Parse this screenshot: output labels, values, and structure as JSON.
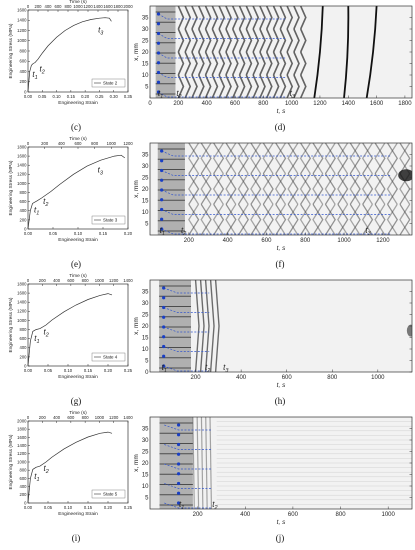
{
  "panels": [
    {
      "caption": "(c)",
      "chart_data": {
        "type": "line",
        "xlabel": "Engineering Strain",
        "ylabel": "Engineering Stress (MPa)",
        "toplabel": "Time (s)",
        "xlim": [
          0,
          0.35
        ],
        "ylim": [
          0,
          1600
        ],
        "toplim": [
          0,
          2000
        ],
        "xticks": [
          "0.00",
          "0.05",
          "0.10",
          "0.15",
          "0.20",
          "0.25",
          "0.30",
          "0.35"
        ],
        "yticks": [
          "0",
          "200",
          "400",
          "600",
          "800",
          "1000",
          "1200",
          "1400",
          "1600"
        ],
        "topticks": [
          "0",
          "200",
          "400",
          "600",
          "800",
          "1000",
          "1200",
          "1400",
          "1600",
          "1800",
          "2000"
        ],
        "legend": "State 2",
        "legend_position": "bottom-right",
        "series": [
          {
            "x": [
              0,
              0.006,
              0.012,
              0.018,
              0.025,
              0.035,
              0.05,
              0.07,
              0.1,
              0.13,
              0.16,
              0.19,
              0.22,
              0.25,
              0.27,
              0.285,
              0.292
            ],
            "y": [
              0,
              400,
              520,
              555,
              575,
              640,
              760,
              900,
              1070,
              1200,
              1300,
              1370,
              1415,
              1440,
              1450,
              1440,
              1380
            ]
          }
        ],
        "annotations": [
          {
            "label": "t1",
            "x": 0.01,
            "y": 430
          },
          {
            "label": "t2",
            "x": 0.035,
            "y": 540
          },
          {
            "label": "t3",
            "x": 0.24,
            "y": 1300
          }
        ]
      }
    },
    {
      "caption": "(d)",
      "chart_data": {
        "type": "heatmap",
        "xlabel": "t, s",
        "ylabel": "x, mm",
        "xlim": [
          0,
          1850
        ],
        "ylim": [
          0,
          40
        ],
        "xticks": [
          "0",
          "200",
          "400",
          "600",
          "800",
          "1000",
          "1200",
          "1400",
          "1600",
          "1800"
        ],
        "yticks": [
          "5",
          "10",
          "15",
          "20",
          "25",
          "30",
          "35"
        ],
        "markers": [
          "t1",
          "t2",
          "t3"
        ]
      }
    },
    {
      "caption": "(e)",
      "chart_data": {
        "type": "line",
        "xlabel": "Engineering Strain",
        "ylabel": "Engineering Stress (MPa)",
        "toplabel": "Time (s)",
        "xlim": [
          0,
          0.22
        ],
        "ylim": [
          0,
          1800
        ],
        "toplim": [
          0,
          1300
        ],
        "xticks": [
          "0.00",
          "0.05",
          "0.10",
          "0.15",
          "0.20"
        ],
        "yticks": [
          "0",
          "200",
          "400",
          "600",
          "800",
          "1000",
          "1200",
          "1400",
          "1600",
          "1800"
        ],
        "topticks": [
          "0",
          "200",
          "400",
          "600",
          "800",
          "1000",
          "1200"
        ],
        "legend": "State 3",
        "legend_position": "bottom-right",
        "series": [
          {
            "x": [
              0,
              0.005,
              0.01,
              0.02,
              0.03,
              0.05,
              0.07,
              0.1,
              0.13,
              0.16,
              0.19,
              0.205,
              0.213
            ],
            "y": [
              0,
              400,
              560,
              620,
              680,
              820,
              980,
              1200,
              1380,
              1510,
              1600,
              1620,
              1560
            ]
          }
        ],
        "annotations": [
          {
            "label": "t1",
            "x": 0.01,
            "y": 520
          },
          {
            "label": "t2",
            "x": 0.03,
            "y": 700
          },
          {
            "label": "t3",
            "x": 0.15,
            "y": 1390
          }
        ]
      }
    },
    {
      "caption": "(f)",
      "chart_data": {
        "type": "heatmap",
        "xlabel": "t, s",
        "ylabel": "x, mm",
        "xlim": [
          0,
          1350
        ],
        "ylim": [
          0,
          40
        ],
        "xticks": [
          "200",
          "400",
          "600",
          "800",
          "1000",
          "1200"
        ],
        "yticks": [
          "5",
          "10",
          "15",
          "20",
          "25",
          "30",
          "35"
        ],
        "markers": [
          "t1",
          "t2",
          "t3"
        ]
      }
    },
    {
      "caption": "(g)",
      "chart_data": {
        "type": "line",
        "xlabel": "Engineering Strain",
        "ylabel": "Engineering Stress (MPa)",
        "toplabel": "Time (s)",
        "xlim": [
          0,
          0.25
        ],
        "ylim": [
          0,
          1800
        ],
        "toplim": [
          0,
          1400
        ],
        "xticks": [
          "0.00",
          "0.05",
          "0.10",
          "0.15",
          "0.20",
          "0.25"
        ],
        "yticks": [
          "0",
          "200",
          "400",
          "600",
          "800",
          "1000",
          "1200",
          "1400",
          "1600",
          "1800"
        ],
        "topticks": [
          "0",
          "200",
          "400",
          "600",
          "800",
          "1000",
          "1200",
          "1400"
        ],
        "legend": "State 4",
        "legend_position": "bottom-right",
        "series": [
          {
            "x": [
              0,
              0.006,
              0.012,
              0.02,
              0.03,
              0.045,
              0.06,
              0.09,
              0.12,
              0.15,
              0.18,
              0.2,
              0.21
            ],
            "y": [
              0,
              550,
              760,
              800,
              820,
              900,
              1010,
              1190,
              1340,
              1460,
              1550,
              1590,
              1560
            ]
          }
        ],
        "annotations": [
          {
            "label": "t1",
            "x": 0.012,
            "y": 700
          },
          {
            "label": "t2",
            "x": 0.035,
            "y": 850
          }
        ]
      }
    },
    {
      "caption": "(h)",
      "chart_data": {
        "type": "heatmap",
        "xlabel": "t, s",
        "ylabel": "x, mm",
        "xlim": [
          0,
          1150
        ],
        "ylim": [
          0,
          40
        ],
        "xticks": [
          "200",
          "400",
          "600",
          "800",
          "1000"
        ],
        "yticks": [
          "0",
          "5",
          "10",
          "15",
          "20",
          "25",
          "30",
          "35"
        ],
        "markers": [
          "t1",
          "t2",
          "t3"
        ]
      }
    },
    {
      "caption": "(i)",
      "chart_data": {
        "type": "line",
        "xlabel": "Engineering Strain",
        "ylabel": "Engineering Stress (MPa)",
        "toplabel": "Time (s)",
        "xlim": [
          0,
          0.25
        ],
        "ylim": [
          0,
          2000
        ],
        "toplim": [
          0,
          1400
        ],
        "xticks": [
          "0.00",
          "0.05",
          "0.10",
          "0.15",
          "0.20",
          "0.25"
        ],
        "yticks": [
          "0",
          "200",
          "400",
          "600",
          "800",
          "1000",
          "1200",
          "1400",
          "1600",
          "1800",
          "2000"
        ],
        "topticks": [
          "0",
          "200",
          "400",
          "600",
          "800",
          "1000",
          "1200",
          "1400"
        ],
        "legend": "State 5",
        "legend_position": "bottom-right",
        "series": [
          {
            "x": [
              0,
              0.006,
              0.012,
              0.02,
              0.03,
              0.045,
              0.06,
              0.09,
              0.12,
              0.15,
              0.18,
              0.2,
              0.21
            ],
            "y": [
              0,
              600,
              820,
              870,
              900,
              1000,
              1120,
              1320,
              1480,
              1610,
              1700,
              1730,
              1700
            ]
          }
        ],
        "annotations": [
          {
            "label": "t1",
            "x": 0.012,
            "y": 760
          },
          {
            "label": "t2",
            "x": 0.035,
            "y": 950
          }
        ]
      }
    },
    {
      "caption": "(j)",
      "chart_data": {
        "type": "heatmap",
        "xlabel": "t, s",
        "ylabel": "x, mm",
        "xlim": [
          0,
          1100
        ],
        "ylim": [
          0,
          40
        ],
        "xticks": [
          "200",
          "400",
          "600",
          "800",
          "1000"
        ],
        "yticks": [
          "5",
          "10",
          "15",
          "20",
          "25",
          "30",
          "35"
        ],
        "markers": [
          "t1",
          "t2"
        ]
      }
    }
  ]
}
